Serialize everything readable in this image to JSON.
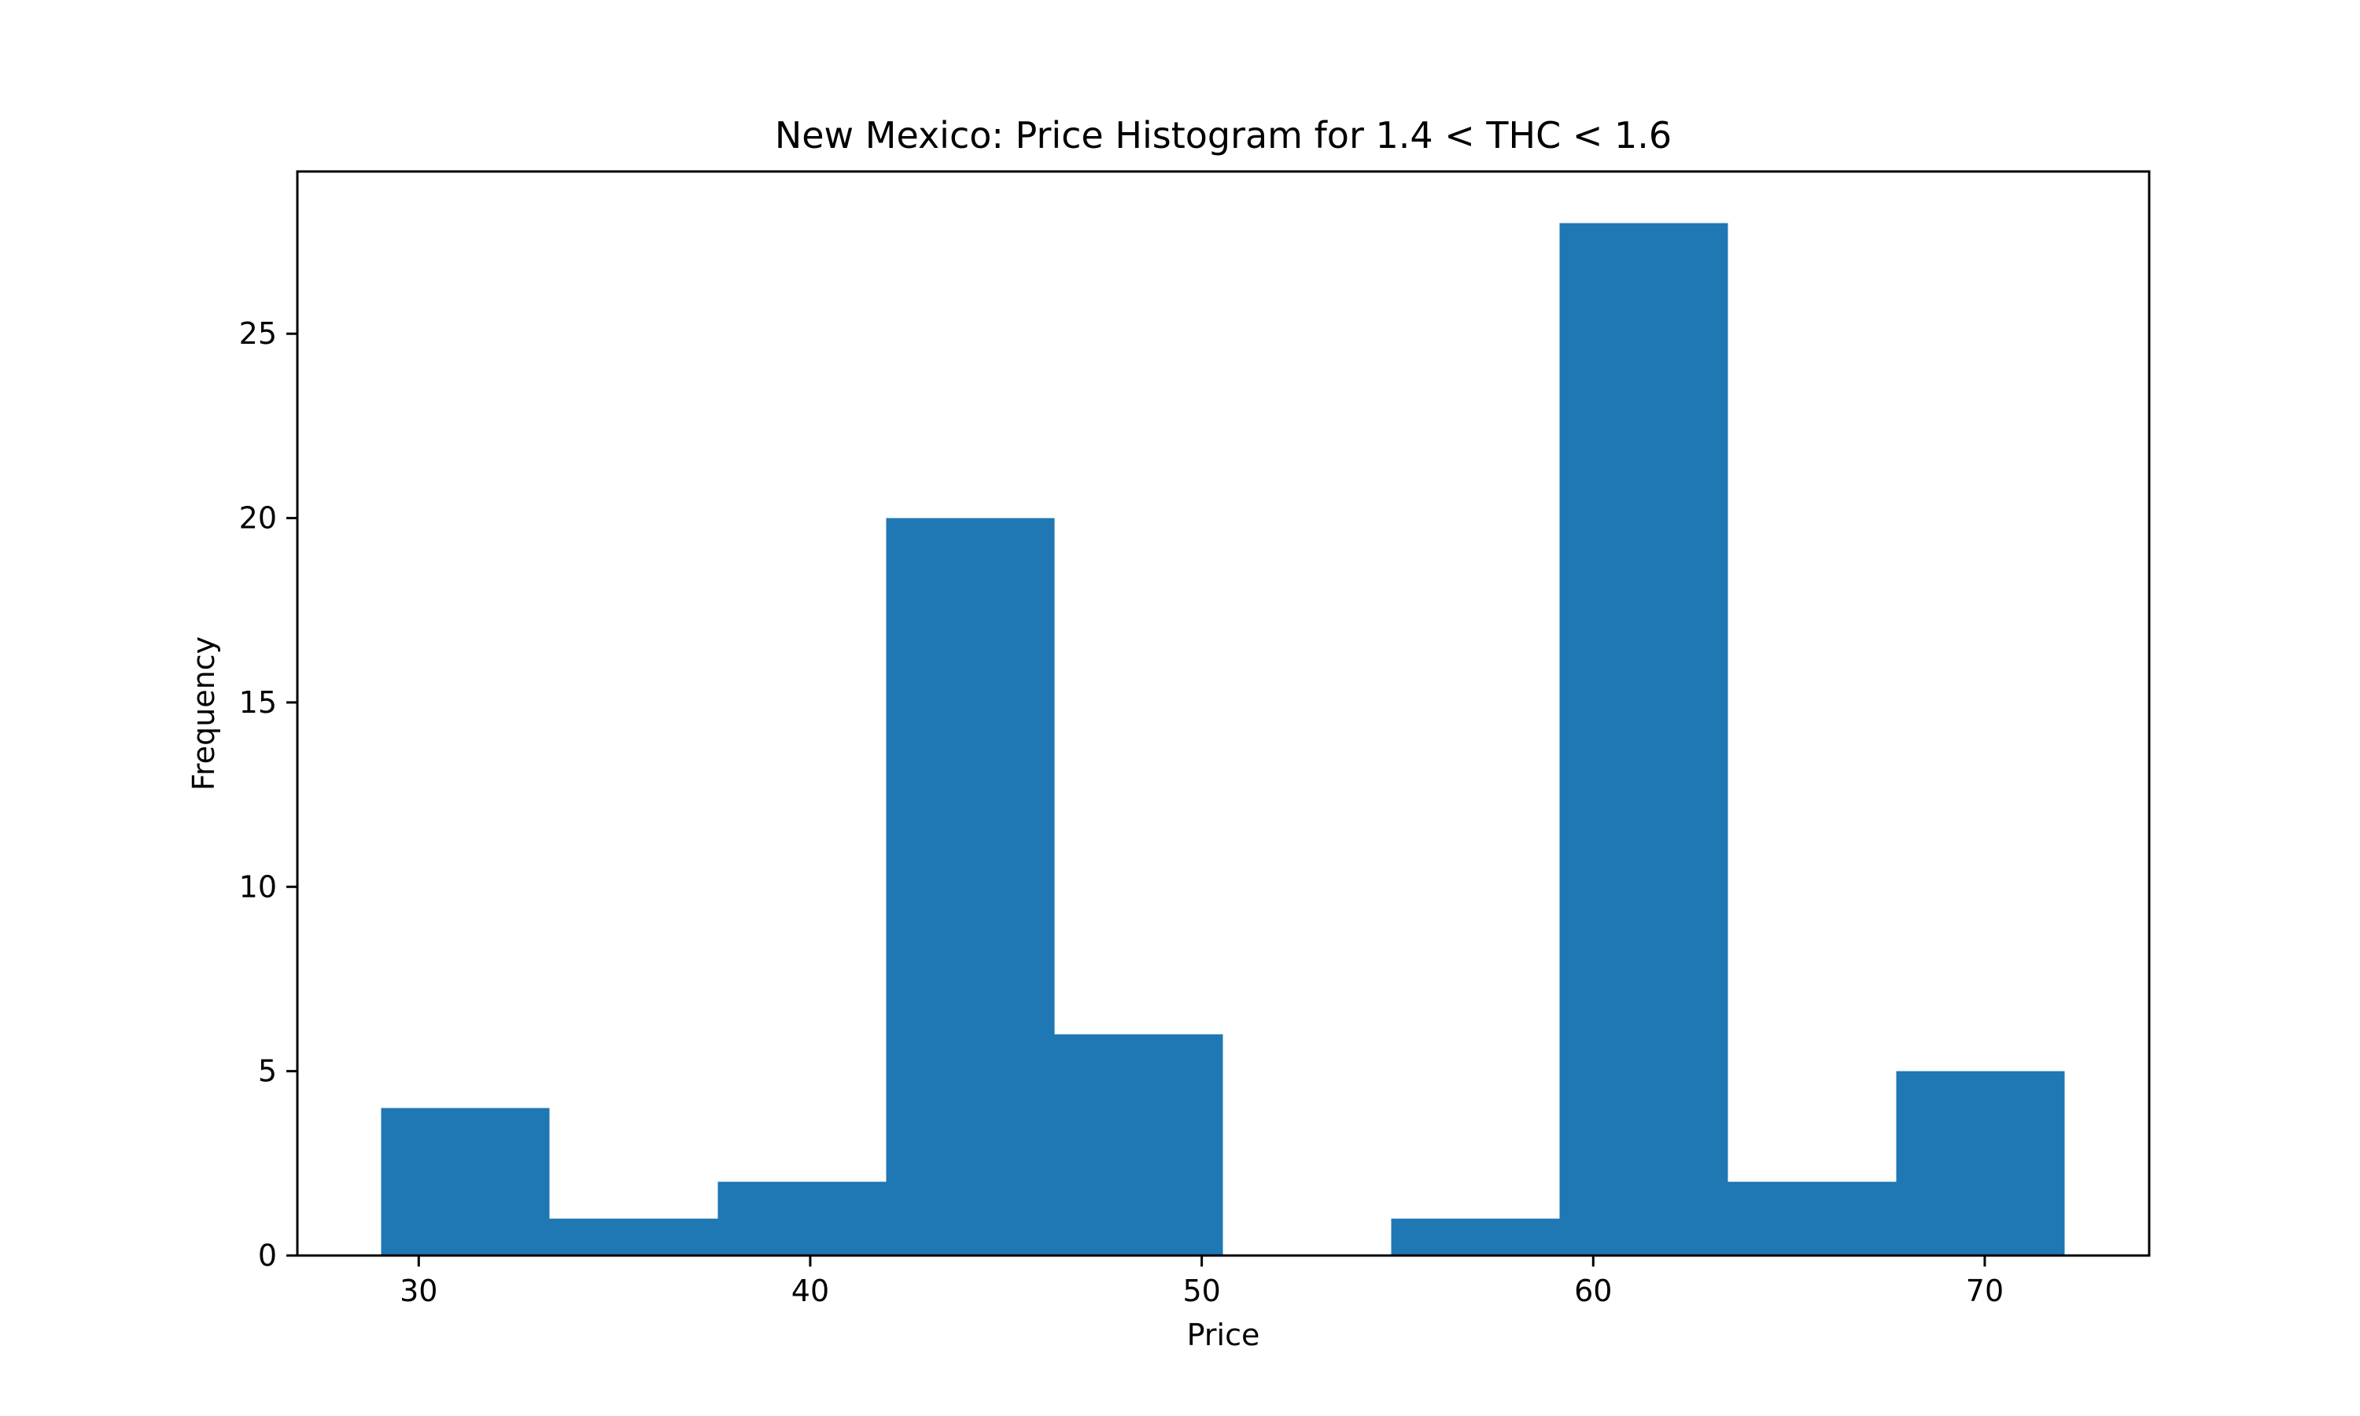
{
  "chart_data": {
    "type": "bar",
    "title": "New Mexico: Price Histogram for 1.4 < THC < 1.6",
    "xlabel": "Price",
    "ylabel": "Frequency",
    "xlim": [
      26.9,
      74.2
    ],
    "ylim": [
      0,
      29.4
    ],
    "xticks": [
      30,
      40,
      50,
      60,
      70
    ],
    "yticks": [
      0,
      5,
      10,
      15,
      20,
      25
    ],
    "grid": false,
    "bar_color": "#1f77b4",
    "bins": [
      {
        "x0": 29.04,
        "x1": 33.34,
        "count": 4
      },
      {
        "x0": 33.34,
        "x1": 37.64,
        "count": 1
      },
      {
        "x0": 37.64,
        "x1": 41.94,
        "count": 2
      },
      {
        "x0": 41.94,
        "x1": 46.24,
        "count": 20
      },
      {
        "x0": 46.24,
        "x1": 50.54,
        "count": 6
      },
      {
        "x0": 50.54,
        "x1": 54.84,
        "count": 0
      },
      {
        "x0": 54.84,
        "x1": 59.14,
        "count": 1
      },
      {
        "x0": 59.14,
        "x1": 63.44,
        "count": 28
      },
      {
        "x0": 63.44,
        "x1": 67.74,
        "count": 2
      },
      {
        "x0": 67.74,
        "x1": 72.04,
        "count": 5
      }
    ]
  }
}
